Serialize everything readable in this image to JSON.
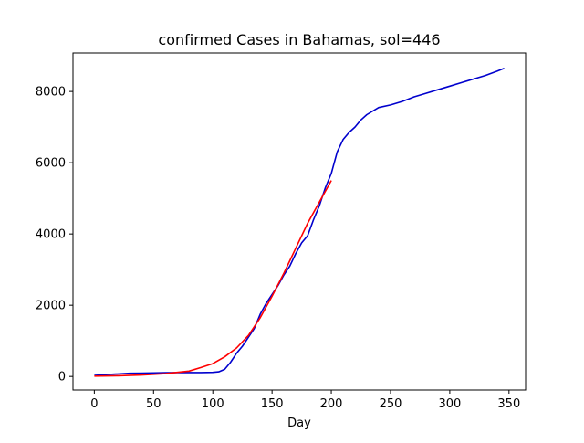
{
  "chart_data": {
    "type": "line",
    "title": "confirmed Cases in Bahamas, sol=446",
    "xlabel": "Day",
    "ylabel": "",
    "xlim": [
      -18,
      364
    ],
    "ylim": [
      -380,
      9080
    ],
    "x_ticks": [
      0,
      50,
      100,
      150,
      200,
      250,
      300,
      350
    ],
    "y_ticks": [
      0,
      2000,
      4000,
      6000,
      8000
    ],
    "grid": false,
    "legend": "none",
    "series": [
      {
        "color": "#0000cd",
        "x": [
          0,
          10,
          20,
          30,
          40,
          50,
          60,
          70,
          80,
          90,
          100,
          105,
          110,
          115,
          120,
          125,
          130,
          135,
          140,
          145,
          150,
          155,
          160,
          165,
          170,
          175,
          180,
          185,
          190,
          195,
          200,
          205,
          210,
          215,
          220,
          225,
          230,
          240,
          250,
          260,
          270,
          280,
          290,
          300,
          310,
          320,
          330,
          340,
          346
        ],
        "y": [
          30,
          50,
          70,
          90,
          95,
          100,
          105,
          110,
          110,
          110,
          115,
          130,
          200,
          400,
          650,
          850,
          1100,
          1350,
          1750,
          2050,
          2300,
          2550,
          2850,
          3100,
          3450,
          3750,
          3950,
          4400,
          4800,
          5300,
          5700,
          6300,
          6650,
          6850,
          7000,
          7200,
          7350,
          7550,
          7620,
          7720,
          7850,
          7950,
          8050,
          8150,
          8250,
          8350,
          8450,
          8570,
          8650
        ]
      },
      {
        "color": "#ff0000",
        "x": [
          0,
          20,
          40,
          60,
          80,
          90,
          100,
          110,
          120,
          130,
          140,
          150,
          160,
          170,
          180,
          190,
          200
        ],
        "y": [
          10,
          20,
          40,
          80,
          150,
          250,
          360,
          550,
          800,
          1150,
          1650,
          2250,
          2900,
          3600,
          4300,
          4900,
          5500
        ]
      }
    ]
  }
}
